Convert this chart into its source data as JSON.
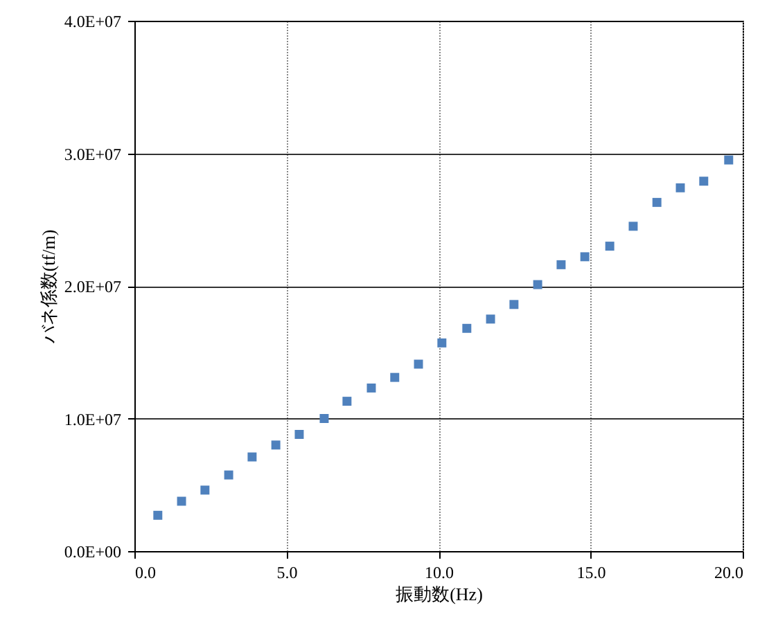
{
  "chart_data": {
    "type": "scatter",
    "xlabel": "振動数(Hz)",
    "ylabel": "バネ係数(tf/m)",
    "x": [
      0.77,
      1.55,
      2.32,
      3.1,
      3.87,
      4.65,
      5.42,
      6.24,
      6.99,
      7.79,
      8.56,
      9.34,
      10.11,
      10.93,
      11.71,
      12.48,
      13.26,
      14.03,
      14.81,
      15.63,
      16.4,
      17.18,
      17.95,
      18.72,
      19.54
    ],
    "series": [
      {
        "color": "#4f81bd",
        "values": [
          2700000,
          3760000,
          4600000,
          5740000,
          7100000,
          8000000,
          8800000,
          10000000,
          11300000,
          12300000,
          13100000,
          14100000,
          15700000,
          16800000,
          17500000,
          18600000,
          20100000,
          21600000,
          22200000,
          23000000,
          24500000,
          26300000,
          27400000,
          27900000,
          29500000
        ]
      }
    ],
    "xlim": [
      0,
      20
    ],
    "xticks": [
      {
        "value": 0,
        "label": "0.0"
      },
      {
        "value": 5,
        "label": "5.0"
      },
      {
        "value": 10,
        "label": "10.0"
      },
      {
        "value": 15,
        "label": "15.0"
      },
      {
        "value": 20,
        "label": "20.0"
      }
    ],
    "ylim": [
      0,
      40000000
    ],
    "yticks": [
      {
        "value": 0,
        "label": "0.0E+00"
      },
      {
        "value": 10000000,
        "label": "1.0E+07"
      },
      {
        "value": 20000000,
        "label": "2.0E+07"
      },
      {
        "value": 30000000,
        "label": "3.0E+07"
      },
      {
        "value": 40000000,
        "label": "4.0E+07"
      }
    ],
    "grid": true,
    "marker": "square"
  }
}
